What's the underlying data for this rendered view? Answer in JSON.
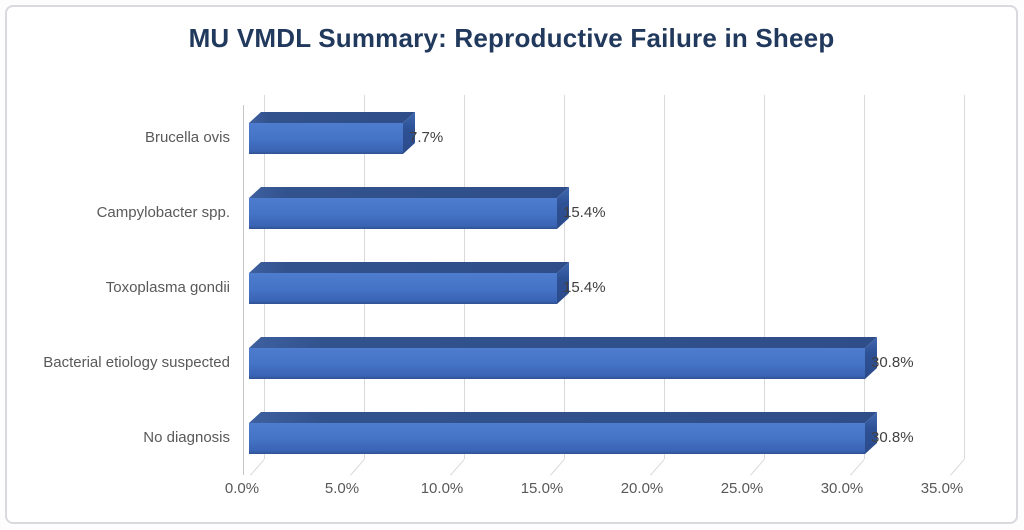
{
  "page": {
    "background": "#ffffff"
  },
  "chart_data": {
    "type": "bar",
    "orientation": "horizontal",
    "style": "3d",
    "title": "MU VMDL Summary: Reproductive Failure in Sheep",
    "categories": [
      "Brucella ovis",
      "Campylobacter spp.",
      "Toxoplasma gondii",
      "Bacterial etiology suspected",
      "No diagnosis"
    ],
    "values": [
      7.7,
      15.4,
      15.4,
      30.8,
      30.8
    ],
    "value_labels": [
      "7.7%",
      "15.4%",
      "15.4%",
      "30.8%",
      "30.8%"
    ],
    "x_axis": {
      "min": 0,
      "max": 35,
      "unit": "percent",
      "tick_values": [
        0,
        5,
        10,
        15,
        20,
        25,
        30,
        35
      ],
      "tick_labels": [
        "0.0%",
        "5.0%",
        "10.0%",
        "15.0%",
        "20.0%",
        "25.0%",
        "30.0%",
        "35.0%"
      ]
    },
    "grid": true,
    "legend": false,
    "colors": {
      "bar_front": "#4472C4",
      "bar_front_light": "#4E7CCF",
      "bar_front_dark": "#3A63B4",
      "bar_top": "#32528E",
      "bar_end": "#2E5195",
      "gridline": "#D9D9D9",
      "axis_line": "#C6C6C6",
      "tick_text": "#595959",
      "category_text": "#595959",
      "value_text": "#404040",
      "title_text": "#21395C",
      "card_border": "#D9DADD"
    }
  }
}
